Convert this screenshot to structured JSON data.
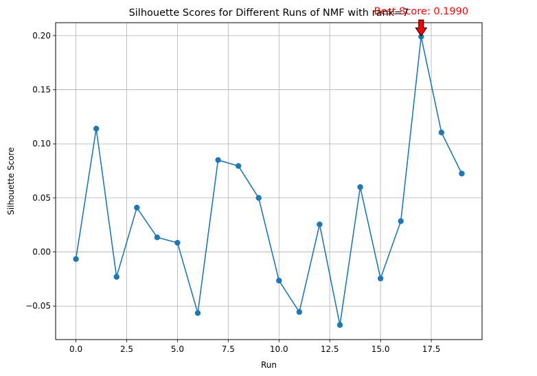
{
  "chart_data": {
    "type": "line",
    "title": "Silhouette Scores for Different Runs of NMF with rank=7",
    "xlabel": "Run",
    "ylabel": "Silhouette Score",
    "xlim": [
      -1,
      20
    ],
    "ylim": [
      -0.081,
      0.212
    ],
    "xticks": [
      0,
      2.5,
      5,
      7.5,
      10,
      12.5,
      15,
      17.5
    ],
    "xtick_labels": [
      "0.0",
      "2.5",
      "5.0",
      "7.5",
      "10.0",
      "12.5",
      "15.0",
      "17.5"
    ],
    "yticks": [
      -0.05,
      0,
      0.05,
      0.1,
      0.15,
      0.2
    ],
    "ytick_labels": [
      "−0.05",
      "0.00",
      "0.05",
      "0.10",
      "0.15",
      "0.20"
    ],
    "grid": true,
    "series": [
      {
        "color": "#1f77b4",
        "marker": "circle",
        "x": [
          0,
          1,
          2,
          3,
          4,
          5,
          6,
          7,
          8,
          9,
          10,
          11,
          12,
          13,
          14,
          15,
          16,
          17,
          18,
          19
        ],
        "y": [
          -0.0065,
          0.114,
          -0.023,
          0.041,
          0.0135,
          0.0085,
          -0.0565,
          0.085,
          0.0795,
          0.05,
          -0.0265,
          -0.0555,
          0.0255,
          -0.0675,
          0.06,
          -0.0245,
          0.0285,
          0.199,
          0.1105,
          0.0725
        ]
      }
    ],
    "annotation": {
      "text": "Best Score: 0.1990",
      "x": 17,
      "y": 0.199,
      "color": "#ff0000",
      "arrow": "red-down-arrow"
    }
  }
}
